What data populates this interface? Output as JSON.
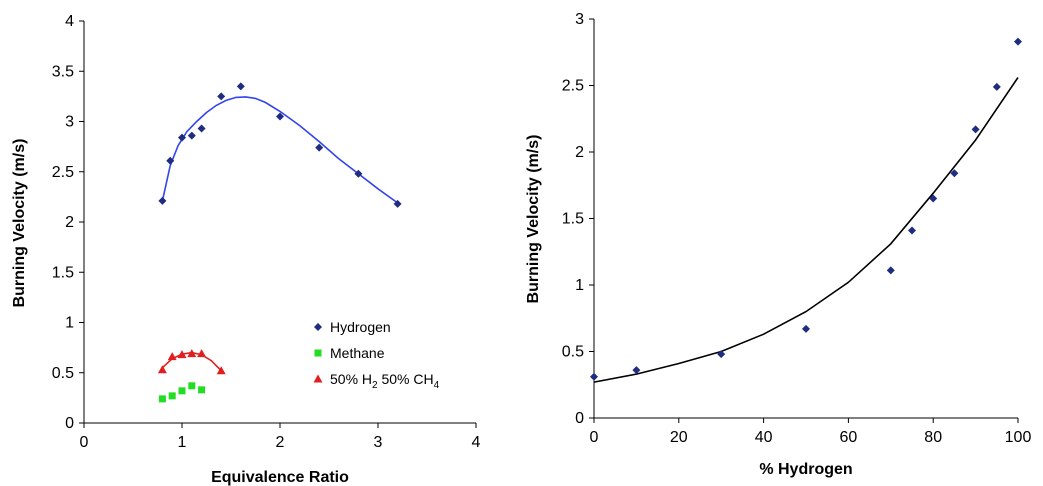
{
  "chart_data": [
    {
      "type": "scatter",
      "xlabel": "Equivalence Ratio",
      "ylabel": "Burning Velocity (m/s)",
      "xlim": [
        0,
        4
      ],
      "ylim": [
        0,
        4
      ],
      "xticks": [
        "0",
        "1",
        "2",
        "3",
        "4"
      ],
      "yticks": [
        "0",
        "0.5",
        "1",
        "1.5",
        "2",
        "2.5",
        "3",
        "3.5",
        "4"
      ],
      "grid": false,
      "legend_position": "bottom-right",
      "series": [
        {
          "name": "Hydrogen",
          "marker": "diamond",
          "color": "#1f2d80",
          "trend_color": "#3344ee",
          "points": [
            [
              0.8,
              2.21
            ],
            [
              0.88,
              2.61
            ],
            [
              1.0,
              2.84
            ],
            [
              1.1,
              2.86
            ],
            [
              1.2,
              2.93
            ],
            [
              1.4,
              3.25
            ],
            [
              1.6,
              3.35
            ],
            [
              2.0,
              3.05
            ],
            [
              2.4,
              2.74
            ],
            [
              2.8,
              2.48
            ],
            [
              3.2,
              2.18
            ]
          ],
          "trend": [
            [
              0.8,
              2.21
            ],
            [
              0.88,
              2.56
            ],
            [
              0.96,
              2.76
            ],
            [
              1.05,
              2.9
            ],
            [
              1.15,
              3.0
            ],
            [
              1.25,
              3.09
            ],
            [
              1.35,
              3.16
            ],
            [
              1.45,
              3.21
            ],
            [
              1.55,
              3.24
            ],
            [
              1.65,
              3.245
            ],
            [
              1.75,
              3.23
            ],
            [
              1.85,
              3.19
            ],
            [
              2.0,
              3.1
            ],
            [
              2.2,
              2.96
            ],
            [
              2.4,
              2.8
            ],
            [
              2.6,
              2.63
            ],
            [
              2.8,
              2.48
            ],
            [
              3.0,
              2.33
            ],
            [
              3.2,
              2.19
            ]
          ]
        },
        {
          "name": "Methane",
          "marker": "square",
          "color": "#22dd22",
          "points": [
            [
              0.8,
              0.24
            ],
            [
              0.9,
              0.27
            ],
            [
              1.0,
              0.32
            ],
            [
              1.1,
              0.37
            ],
            [
              1.2,
              0.33
            ]
          ]
        },
        {
          "name": "50% H2 50% CH4",
          "label_parts": [
            "50% H",
            "2",
            " 50% CH",
            "4"
          ],
          "marker": "triangle",
          "color": "#e02020",
          "points": [
            [
              0.8,
              0.53
            ],
            [
              0.9,
              0.66
            ],
            [
              1.0,
              0.68
            ],
            [
              1.1,
              0.69
            ],
            [
              1.2,
              0.69
            ],
            [
              1.4,
              0.52
            ]
          ],
          "trend": [
            [
              0.8,
              0.55
            ],
            [
              0.9,
              0.64
            ],
            [
              1.0,
              0.685
            ],
            [
              1.1,
              0.7
            ],
            [
              1.2,
              0.68
            ],
            [
              1.3,
              0.62
            ],
            [
              1.4,
              0.52
            ]
          ]
        }
      ]
    },
    {
      "type": "scatter",
      "xlabel": "% Hydrogen",
      "ylabel": "Burning Velocity (m/s)",
      "xlim": [
        0,
        100
      ],
      "ylim": [
        0,
        3
      ],
      "xticks": [
        "0",
        "20",
        "40",
        "60",
        "80",
        "100"
      ],
      "yticks": [
        "0",
        "0.5",
        "1",
        "1.5",
        "2",
        "2.5",
        "3"
      ],
      "grid": false,
      "legend_position": "none",
      "series": [
        {
          "marker": "diamond",
          "color": "#1f2d80",
          "trend_color": "#000000",
          "points": [
            [
              0,
              0.31
            ],
            [
              10,
              0.36
            ],
            [
              30,
              0.48
            ],
            [
              50,
              0.67
            ],
            [
              70,
              1.11
            ],
            [
              75,
              1.41
            ],
            [
              80,
              1.65
            ],
            [
              85,
              1.84
            ],
            [
              90,
              2.17
            ],
            [
              95,
              2.49
            ],
            [
              100,
              2.83
            ]
          ],
          "trend": [
            [
              0,
              0.27
            ],
            [
              10,
              0.33
            ],
            [
              20,
              0.41
            ],
            [
              30,
              0.5
            ],
            [
              40,
              0.63
            ],
            [
              50,
              0.8
            ],
            [
              60,
              1.02
            ],
            [
              70,
              1.31
            ],
            [
              80,
              1.69
            ],
            [
              90,
              2.09
            ],
            [
              100,
              2.56
            ]
          ]
        }
      ]
    }
  ]
}
